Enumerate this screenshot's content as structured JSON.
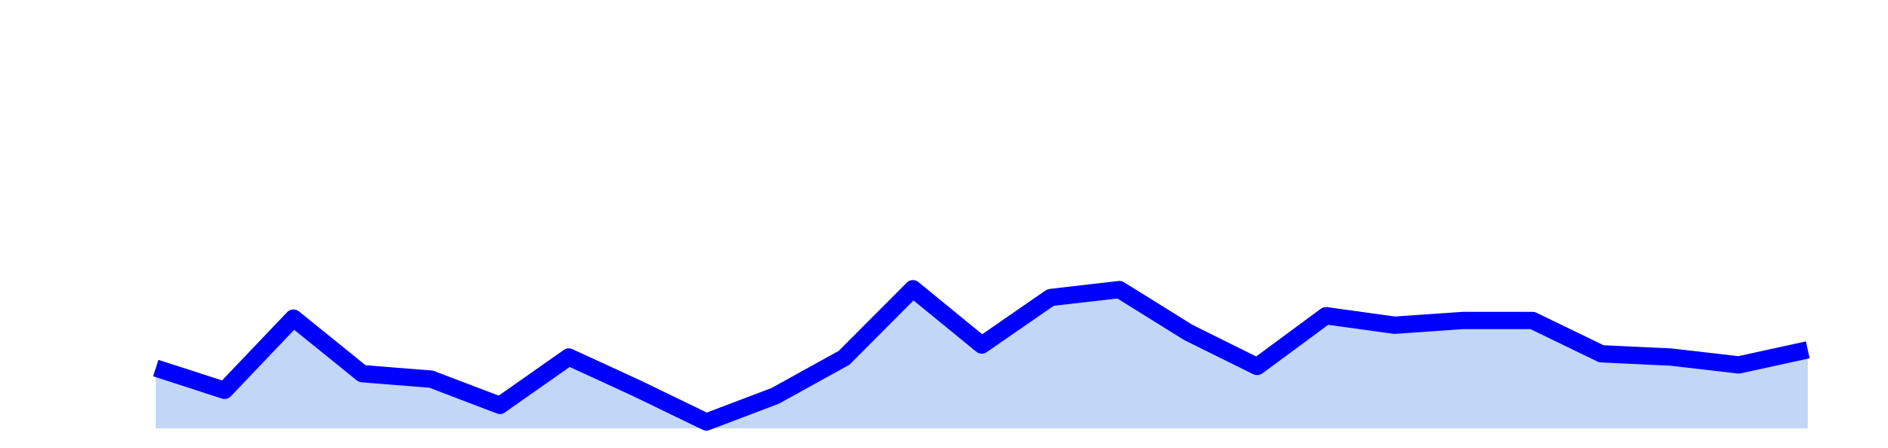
{
  "chart_data": {
    "type": "area",
    "title": "",
    "xlabel": "",
    "ylabel": "",
    "grid": false,
    "legend": "none",
    "x": [
      0,
      1,
      2,
      3,
      4,
      5,
      6,
      7,
      8,
      9,
      10,
      11,
      12,
      13,
      14,
      15,
      16,
      17,
      18,
      19,
      20,
      21,
      22,
      23,
      24
    ],
    "series": [
      {
        "name": "",
        "values": [
          7.6,
          4.8,
          13.9,
          6.9,
          6.2,
          2.9,
          9.0,
          5.0,
          0.8,
          4.1,
          8.9,
          17.6,
          10.5,
          16.5,
          17.5,
          12.1,
          7.8,
          14.2,
          13.0,
          13.6,
          13.6,
          9.4,
          9.0,
          8.0,
          9.9
        ]
      }
    ],
    "ylim": [
      0,
      54
    ],
    "colors": {
      "line": "#0000ff",
      "fill": "#c2d6f6"
    }
  }
}
